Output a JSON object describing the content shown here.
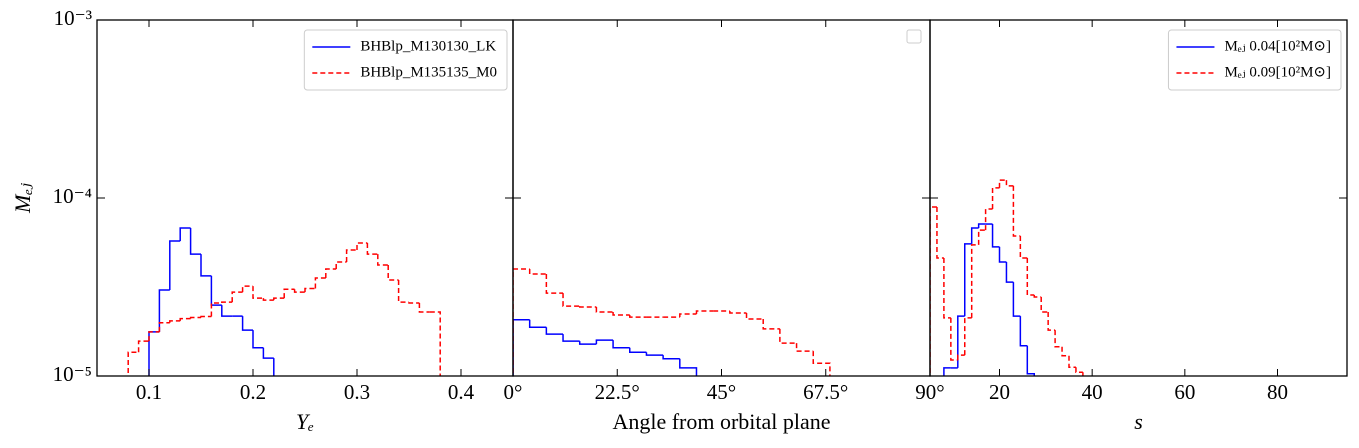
{
  "chart_data": [
    {
      "type": "histogram",
      "xlabel": "Yₑ",
      "ylabel": "Mₑⱼ",
      "log_y": true,
      "legend": "upper right",
      "xlim": [
        0.05,
        0.45
      ],
      "xticks": [
        0.1,
        0.2,
        0.3,
        0.4
      ],
      "ylim": [
        1e-05,
        0.001
      ],
      "yticks": [
        {
          "value": 1e-05,
          "label": "10⁻⁵"
        },
        {
          "value": 0.0001,
          "label": "10⁻⁴"
        },
        {
          "value": 0.001,
          "label": "10⁻³"
        }
      ],
      "series": [
        {
          "name": "BHBlp_M130130_LK",
          "color": "#0000ff",
          "linestyle": "solid",
          "bins": [
            0.1,
            0.11,
            0.12,
            0.13,
            0.14,
            0.15,
            0.16,
            0.17,
            0.18,
            0.19,
            0.2,
            0.21,
            0.22,
            0.23
          ],
          "values": [
            1.77e-05,
            3.04e-05,
            5.73e-05,
            6.78e-05,
            4.84e-05,
            3.65e-05,
            2.5e-05,
            2.17e-05,
            2.17e-05,
            1.81e-05,
            1.44e-05,
            1.26e-05,
            9e-06
          ]
        },
        {
          "name": "BHBlp_M135135_M0",
          "color": "#ff0000",
          "linestyle": "dashed",
          "bins": [
            0.08,
            0.09,
            0.1,
            0.11,
            0.12,
            0.13,
            0.14,
            0.15,
            0.16,
            0.17,
            0.18,
            0.19,
            0.2,
            0.21,
            0.22,
            0.23,
            0.24,
            0.25,
            0.26,
            0.27,
            0.28,
            0.29,
            0.3,
            0.31,
            0.32,
            0.33,
            0.34,
            0.35,
            0.36,
            0.37,
            0.38
          ],
          "values": [
            1.36e-05,
            1.57e-05,
            1.77e-05,
            1.99e-05,
            2.04e-05,
            2.1e-05,
            2.13e-05,
            2.16e-05,
            2.57e-05,
            2.6e-05,
            2.96e-05,
            3.2e-05,
            2.74e-05,
            2.67e-05,
            2.74e-05,
            3.07e-05,
            2.96e-05,
            3.1e-05,
            3.55e-05,
            3.99e-05,
            4.37e-05,
            5.1e-05,
            5.59e-05,
            4.84e-05,
            4.2e-05,
            3.46e-05,
            2.6e-05,
            2.57e-05,
            2.29e-05,
            2.29e-05
          ]
        }
      ]
    },
    {
      "type": "histogram",
      "xlabel": "Angle from orbital plane",
      "log_y": true,
      "legend": "upper right",
      "xlim": [
        0,
        90
      ],
      "xticks": [
        {
          "value": 0,
          "label": "0°"
        },
        {
          "value": 22.5,
          "label": "22.5°"
        },
        {
          "value": 45,
          "label": "45°"
        },
        {
          "value": 67.5,
          "label": "67.5°"
        },
        {
          "value": 90,
          "label": "90°"
        }
      ],
      "ylim": [
        1e-05,
        0.001
      ],
      "yticks": [
        1e-05,
        0.0001,
        0.001
      ],
      "series": [
        {
          "color": "#0000ff",
          "linestyle": "solid",
          "bins": [
            0,
            3.6,
            7.2,
            10.8,
            14.4,
            18,
            21.6,
            25.2,
            28.8,
            32.4,
            36,
            39.6
          ],
          "values": [
            2.07e-05,
            1.88e-05,
            1.72e-05,
            1.57e-05,
            1.51e-05,
            1.59e-05,
            1.44e-05,
            1.36e-05,
            1.31e-05,
            1.25e-05,
            1.11e-05
          ]
        },
        {
          "color": "#ff0000",
          "linestyle": "dashed",
          "bins": [
            0,
            3.6,
            7.2,
            10.8,
            14.4,
            18,
            21.6,
            25.2,
            28.8,
            32.4,
            36,
            39.6,
            43.2,
            46.8,
            50.4,
            54,
            57.6,
            61.2,
            64.8,
            68.4
          ],
          "values": [
            3.99e-05,
            3.74e-05,
            2.92e-05,
            2.47e-05,
            2.44e-05,
            2.29e-05,
            2.2e-05,
            2.14e-05,
            2.14e-05,
            2.14e-05,
            2.23e-05,
            2.32e-05,
            2.32e-05,
            2.26e-05,
            2.09e-05,
            1.84e-05,
            1.53e-05,
            1.38e-05,
            1.18e-05
          ]
        }
      ]
    },
    {
      "type": "histogram",
      "xlabel": "s",
      "log_y": true,
      "legend": "upper right",
      "xlim": [
        5,
        95
      ],
      "xticks": [
        20,
        40,
        60,
        80
      ],
      "ylim": [
        1e-05,
        0.001
      ],
      "yticks": [
        1e-05,
        0.0001,
        0.001
      ],
      "series": [
        {
          "name": "Mₑⱼ 0.04[10²M⊙]",
          "color": "#0000ff",
          "linestyle": "solid",
          "bins": [
            8,
            9.5,
            11,
            12.5,
            14,
            15.5,
            17,
            18.5,
            20,
            21.5,
            23,
            24.5,
            26,
            27.5
          ],
          "values": [
            1.11e-05,
            1.11e-05,
            2.17e-05,
            5.52e-05,
            6.78e-05,
            7.14e-05,
            7.14e-05,
            5.31e-05,
            4.37e-05,
            3.37e-05,
            2.17e-05,
            1.48e-05,
            1.03e-05
          ]
        },
        {
          "name": "Mₑⱼ 0.09[10²M⊙]",
          "color": "#ff0000",
          "linestyle": "dashed",
          "bins": [
            5,
            6.5,
            8,
            9.5,
            11,
            12.5,
            14,
            15.5,
            17,
            18.5,
            20,
            21.5,
            23,
            24.5,
            26,
            27.5,
            29,
            30.5,
            32,
            33.5,
            35,
            36.5,
            38,
            39.5
          ],
          "values": [
            8.9e-05,
            4.6e-05,
            2.12e-05,
            1.23e-05,
            1.31e-05,
            2.12e-05,
            5.45e-05,
            6.6e-05,
            8.67e-05,
            0.000114,
            0.000126,
            0.000117,
            6.12e-05,
            4.6e-05,
            2.85e-05,
            2.78e-05,
            2.29e-05,
            1.81e-05,
            1.46e-05,
            1.3e-05,
            1.12e-05,
            1.05e-05,
            9.5e-06
          ]
        }
      ]
    }
  ]
}
